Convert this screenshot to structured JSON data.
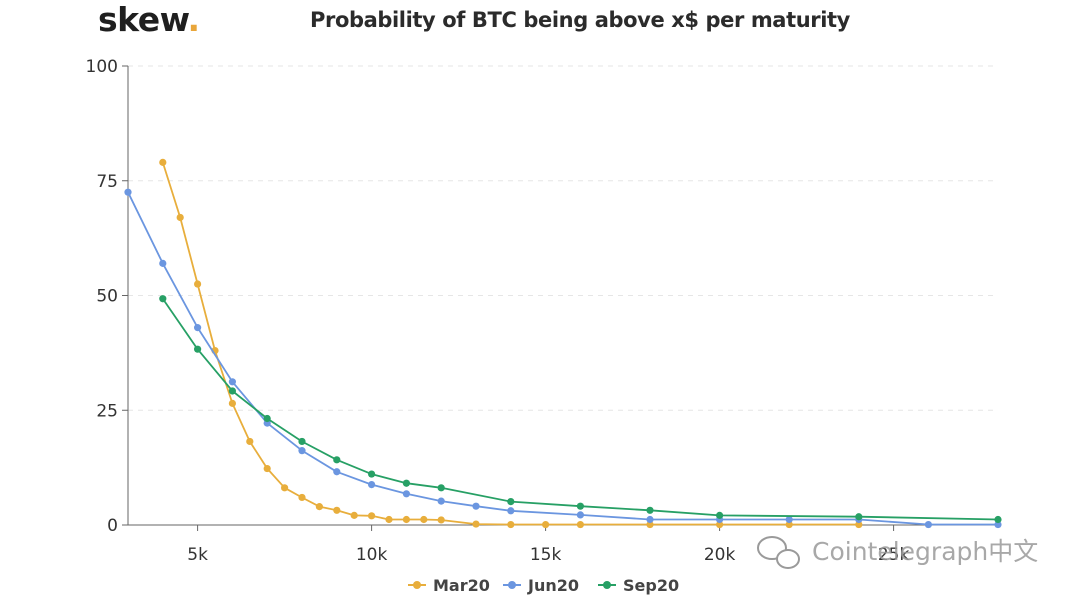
{
  "brand": {
    "name": "skew",
    "dot": "."
  },
  "watermark": {
    "text": "Cointelegraph中文"
  },
  "colors": {
    "Mar20": "#e8ae3c",
    "Jun20": "#6b96e0",
    "Sep20": "#27a065",
    "axis": "#666666",
    "grid": "#e6e6e6"
  },
  "chart_data": {
    "type": "line",
    "title": "Probability of BTC being above x$ per maturity",
    "xlabel": "",
    "ylabel": "",
    "xlim": [
      3000,
      28000
    ],
    "ylim": [
      0,
      100
    ],
    "x_ticks": [
      {
        "value": 5000,
        "label": "5k"
      },
      {
        "value": 10000,
        "label": "10k"
      },
      {
        "value": 15000,
        "label": "15k"
      },
      {
        "value": 20000,
        "label": "20k"
      },
      {
        "value": 25000,
        "label": "25k"
      }
    ],
    "y_ticks": [
      {
        "value": 0,
        "label": "0"
      },
      {
        "value": 25,
        "label": "25"
      },
      {
        "value": 50,
        "label": "50"
      },
      {
        "value": 75,
        "label": "75"
      },
      {
        "value": 100,
        "label": "100"
      }
    ],
    "grid": true,
    "legend_position": "bottom-center",
    "series": [
      {
        "name": "Mar20",
        "color": "#e8ae3c",
        "points": [
          [
            4000,
            79
          ],
          [
            4500,
            67
          ],
          [
            5000,
            52.5
          ],
          [
            5500,
            38
          ],
          [
            6000,
            26.5
          ],
          [
            6500,
            18.2
          ],
          [
            7000,
            12.3
          ],
          [
            7500,
            8.1
          ],
          [
            8000,
            6
          ],
          [
            8500,
            4
          ],
          [
            9000,
            3.2
          ],
          [
            9500,
            2.1
          ],
          [
            10000,
            2
          ],
          [
            10500,
            1.2
          ],
          [
            11000,
            1.2
          ],
          [
            11500,
            1.2
          ],
          [
            12000,
            1.1
          ],
          [
            13000,
            0.2
          ],
          [
            14000,
            0.1
          ],
          [
            15000,
            0.1
          ],
          [
            16000,
            0.1
          ],
          [
            18000,
            0.1
          ],
          [
            20000,
            0.1
          ],
          [
            22000,
            0.1
          ],
          [
            24000,
            0.1
          ]
        ]
      },
      {
        "name": "Jun20",
        "color": "#6b96e0",
        "points": [
          [
            3000,
            72.5
          ],
          [
            4000,
            57
          ],
          [
            5000,
            43
          ],
          [
            6000,
            31.2
          ],
          [
            7000,
            22.2
          ],
          [
            8000,
            16.2
          ],
          [
            9000,
            11.6
          ],
          [
            10000,
            8.8
          ],
          [
            11000,
            6.8
          ],
          [
            12000,
            5.2
          ],
          [
            13000,
            4.1
          ],
          [
            14000,
            3.1
          ],
          [
            16000,
            2.2
          ],
          [
            18000,
            1.2
          ],
          [
            20000,
            1.2
          ],
          [
            22000,
            1.2
          ],
          [
            24000,
            1.2
          ],
          [
            26000,
            0.1
          ],
          [
            28000,
            0.1
          ]
        ]
      },
      {
        "name": "Sep20",
        "color": "#27a065",
        "points": [
          [
            4000,
            49.3
          ],
          [
            5000,
            38.3
          ],
          [
            6000,
            29.2
          ],
          [
            7000,
            23.2
          ],
          [
            8000,
            18.2
          ],
          [
            9000,
            14.2
          ],
          [
            10000,
            11.1
          ],
          [
            11000,
            9.1
          ],
          [
            12000,
            8.1
          ],
          [
            14000,
            5.1
          ],
          [
            16000,
            4.1
          ],
          [
            18000,
            3.2
          ],
          [
            20000,
            2.1
          ],
          [
            24000,
            1.8
          ],
          [
            28000,
            1.2
          ]
        ]
      }
    ]
  }
}
